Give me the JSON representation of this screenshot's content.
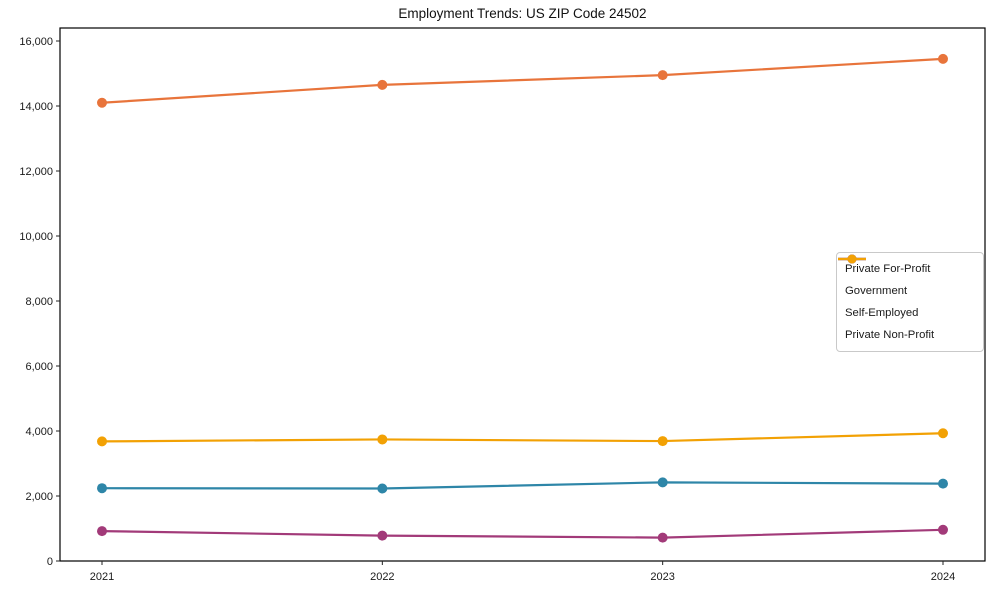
{
  "chart_data": {
    "type": "line",
    "title": "Employment Trends: US ZIP Code 24502",
    "categories": [
      "2021",
      "2022",
      "2023",
      "2024"
    ],
    "series": [
      {
        "name": "Private For-Profit",
        "color": "#E8743B",
        "values": [
          14100,
          14650,
          14950,
          15450
        ]
      },
      {
        "name": "Government",
        "color": "#2E86A8",
        "values": [
          2240,
          2230,
          2420,
          2380
        ]
      },
      {
        "name": "Self-Employed",
        "color": "#A23A79",
        "values": [
          920,
          780,
          720,
          960
        ]
      },
      {
        "name": "Private Non-Profit",
        "color": "#F2A104",
        "values": [
          3680,
          3740,
          3690,
          3930
        ]
      }
    ],
    "xlabel": "",
    "ylabel": "",
    "ylim": [
      0,
      16400
    ],
    "ytick_values": [
      0,
      2000,
      4000,
      6000,
      8000,
      10000,
      12000,
      14000,
      16000
    ],
    "ytick_labels": [
      "0",
      "2,000",
      "4,000",
      "6,000",
      "8,000",
      "10,000",
      "12,000",
      "14,000",
      "16,000"
    ],
    "grid": false,
    "legend_position": "right-center",
    "marker": "circle",
    "line_width": 2.2,
    "marker_radius": 5
  }
}
